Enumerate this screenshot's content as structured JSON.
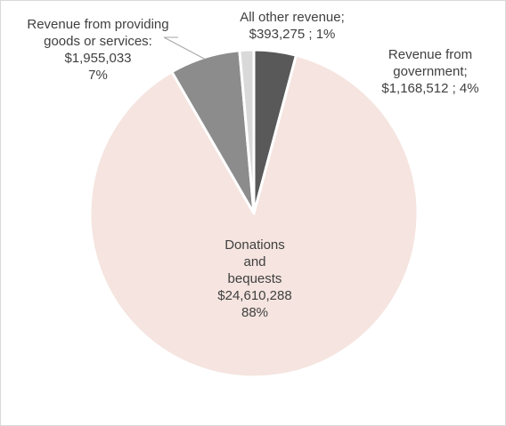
{
  "chart_data": {
    "type": "pie",
    "title": "",
    "start_angle_deg": 0,
    "direction": "clockwise",
    "slices": [
      {
        "key": "government",
        "lines": [
          "Revenue from",
          "government;",
          "$1,168,512 ; 4%"
        ],
        "value": 1168512,
        "percent": 4,
        "color": "#595959"
      },
      {
        "key": "donations",
        "lines": [
          "Donations",
          "and",
          "bequests",
          "$24,610,288",
          "88%"
        ],
        "value": 24610288,
        "percent": 88,
        "color": "#f5e4df"
      },
      {
        "key": "goods",
        "lines": [
          "Revenue from providing",
          "goods or services:",
          "$1,955,033",
          "7%"
        ],
        "value": 1955033,
        "percent": 7,
        "color": "#8c8c8c"
      },
      {
        "key": "other",
        "lines": [
          "All other revenue;",
          "$393,275 ; 1%"
        ],
        "value": 393275,
        "percent": 1,
        "color": "#d9d9d9"
      }
    ]
  }
}
